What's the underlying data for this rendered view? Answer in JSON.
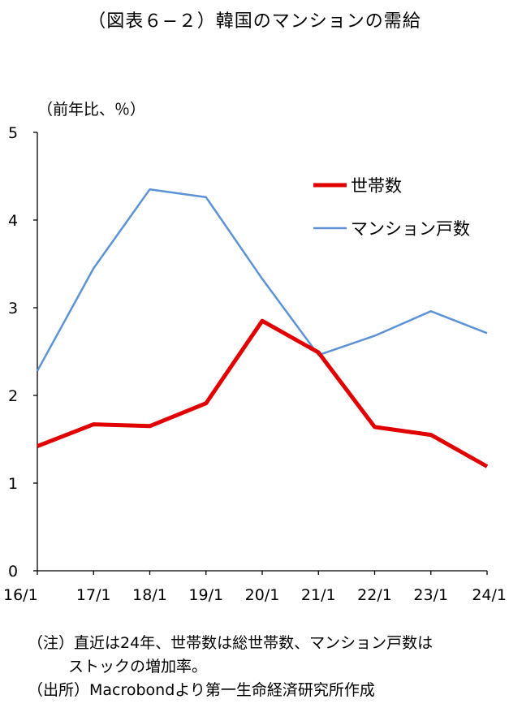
{
  "title": "（図表６−２）韓国のマンションの需給",
  "chart_data": {
    "type": "line",
    "ylabel": "（前年比、％）",
    "ylim": [
      0,
      5
    ],
    "yticks": [
      0,
      1,
      2,
      3,
      4,
      5
    ],
    "categories": [
      "16/1",
      "17/1",
      "18/1",
      "19/1",
      "20/1",
      "21/1",
      "22/1",
      "23/1",
      "24/1"
    ],
    "grid": false,
    "legend_position": "top-right",
    "series": [
      {
        "name": "世帯数",
        "color": "#e00000",
        "values": [
          1.42,
          1.67,
          1.65,
          1.91,
          2.85,
          2.49,
          1.64,
          1.55,
          1.19
        ]
      },
      {
        "name": "マンション戸数",
        "color": "#5b93d6",
        "values": [
          2.28,
          3.45,
          4.35,
          4.26,
          3.33,
          2.46,
          2.68,
          2.96,
          2.71
        ]
      }
    ]
  },
  "notes": {
    "line1": "（注）直近は24年、世帯数は総世帯数、マンション戸数は",
    "line2": "ストックの増加率。",
    "line3": "（出所）Macrobondより第一生命経済研究所作成"
  }
}
